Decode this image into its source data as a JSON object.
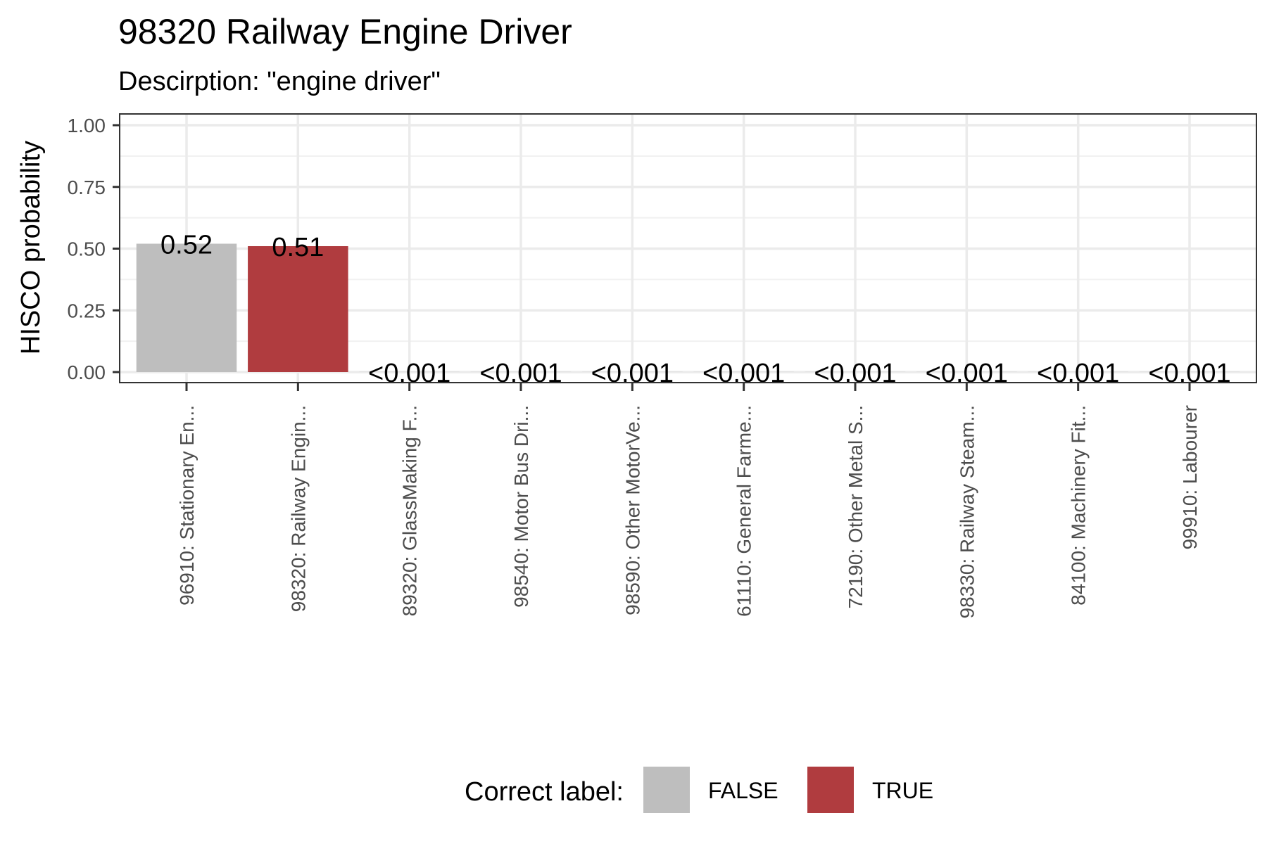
{
  "chart_data": {
    "type": "bar",
    "title": "98320 Railway Engine Driver",
    "subtitle": "Descirption: \"engine driver\"",
    "ylabel": "HISCO probability",
    "xlabel": "",
    "ylim": [
      0,
      1
    ],
    "yticks": [
      "0.00",
      "0.25",
      "0.50",
      "0.75",
      "1.00"
    ],
    "grid": true,
    "categories": [
      "96910: Stationary En...",
      "98320: Railway Engin...",
      "89320: GlassMaking F...",
      "98540: Motor Bus Dri...",
      "98590: Other MotorVe...",
      "61110: General Farme...",
      "72190: Other Metal S...",
      "98330: Railway Steam...",
      "84100: Machinery Fit...",
      "99910: Labourer"
    ],
    "values": [
      0.52,
      0.51,
      0.0005,
      0.0005,
      0.0005,
      0.0005,
      0.0005,
      0.0005,
      0.0005,
      0.0005
    ],
    "data_labels": [
      "0.52",
      "0.51",
      "<0.001",
      "<0.001",
      "<0.001",
      "<0.001",
      "<0.001",
      "<0.001",
      "<0.001",
      "<0.001"
    ],
    "correct": [
      false,
      true,
      false,
      false,
      false,
      false,
      false,
      false,
      false,
      false
    ],
    "legend": {
      "title": "Correct label:",
      "placement": "bottom",
      "entries": [
        {
          "label": "FALSE",
          "color": "#bebebe"
        },
        {
          "label": "TRUE",
          "color": "#b03c3f"
        }
      ]
    }
  }
}
